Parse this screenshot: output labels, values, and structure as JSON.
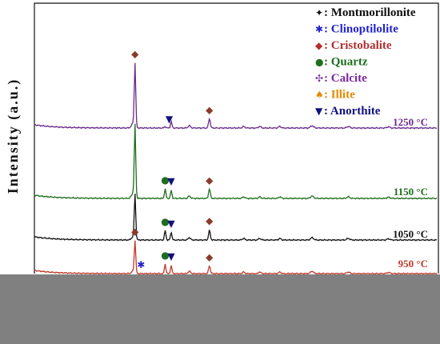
{
  "chart_data": {
    "type": "line",
    "title": "",
    "xlabel": "",
    "ylabel": "Intensity (a.u.)",
    "grid": false,
    "legend_position": "top-right",
    "legend": [
      {
        "symbol": "✦",
        "label": "Montmorillonite",
        "color": "#111111"
      },
      {
        "symbol": "✱",
        "label": "Clinoptilolite",
        "color": "#2222cc"
      },
      {
        "symbol": "◆",
        "label": "Cristobalite",
        "color": "#b03030"
      },
      {
        "symbol": "●",
        "label": "Quartz",
        "color": "#1d6e1d"
      },
      {
        "symbol": "✣",
        "label": "Calcite",
        "color": "#7a2aa0"
      },
      {
        "symbol": "♠",
        "label": "Illite",
        "color": "#e08a00"
      },
      {
        "symbol": "▼",
        "label": "Anorthite",
        "color": "#101080"
      }
    ],
    "series": [
      {
        "name": "1250 °C",
        "color": "#6a2a8a"
      },
      {
        "name": "1150 °C",
        "color": "#1d6e1d"
      },
      {
        "name": "1050 °C",
        "color": "#111111"
      },
      {
        "name": "950 °C",
        "color": "#c0392b"
      }
    ],
    "peak_markers": [
      {
        "series": 0,
        "phase": "Cristobalite",
        "symbol": "◆",
        "color": "#8b3a2b",
        "at": 0.25
      },
      {
        "series": 0,
        "phase": "Anorthite",
        "symbol": "▼",
        "color": "#101080",
        "at": 0.335
      },
      {
        "series": 0,
        "phase": "Cristobalite",
        "symbol": "◆",
        "color": "#8b3a2b",
        "at": 0.435
      },
      {
        "series": 1,
        "phase": "Quartz",
        "symbol": "●",
        "color": "#1d6e1d",
        "at": 0.325
      },
      {
        "series": 1,
        "phase": "Anorthite",
        "symbol": "▼",
        "color": "#101080",
        "at": 0.34
      },
      {
        "series": 1,
        "phase": "Cristobalite",
        "symbol": "◆",
        "color": "#8b3a2b",
        "at": 0.435
      },
      {
        "series": 2,
        "phase": "Quartz",
        "symbol": "●",
        "color": "#1d6e1d",
        "at": 0.325
      },
      {
        "series": 2,
        "phase": "Anorthite",
        "symbol": "▼",
        "color": "#101080",
        "at": 0.34
      },
      {
        "series": 2,
        "phase": "Cristobalite",
        "symbol": "◆",
        "color": "#8b3a2b",
        "at": 0.435
      },
      {
        "series": 3,
        "phase": "Quartz",
        "symbol": "●",
        "color": "#1d6e1d",
        "at": 0.325
      },
      {
        "series": 3,
        "phase": "Anorthite",
        "symbol": "▼",
        "color": "#101080",
        "at": 0.34
      },
      {
        "series": 3,
        "phase": "Cristobalite",
        "symbol": "◆",
        "color": "#8b3a2b",
        "at": 0.435
      },
      {
        "series": 3,
        "phase": "Cristobalite",
        "symbol": "◆",
        "color": "#8b3a2b",
        "at": 0.25
      },
      {
        "series": 3,
        "phase": "Clinoptilolite",
        "symbol": "✱",
        "color": "#2222cc",
        "at": 0.265
      }
    ]
  }
}
